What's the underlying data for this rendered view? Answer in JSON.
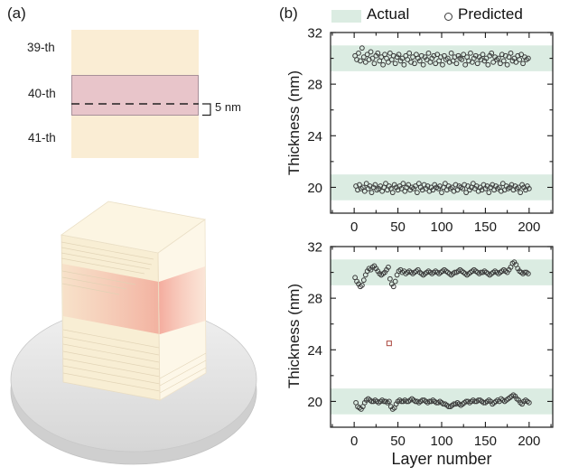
{
  "panel_a": {
    "label": "(a)",
    "layer_labels": [
      "39-th",
      "40-th",
      "41-th"
    ],
    "thickness_annotation": "5 nm",
    "colors": {
      "film": "#faedd4",
      "highlight": "#e8c5ca",
      "highlight_border": "#a89099",
      "disk": "#e7e7e7"
    }
  },
  "panel_b": {
    "label": "(b)",
    "legend": [
      {
        "label": "Actual",
        "swatch": "band"
      },
      {
        "label": "Predicted",
        "swatch": "circle-marker"
      }
    ],
    "ylabel": "Thickness (nm)",
    "xlabel": "Layer number",
    "colors": {
      "band": "#dbece2",
      "marker": "#3a3a3a",
      "outlier": "#b2574f",
      "axis": "#1a1a1a"
    }
  },
  "chart_data": [
    {
      "type": "scatter",
      "title": "",
      "xlabel": "",
      "ylabel": "Thickness (nm)",
      "xlim": [
        -27,
        227
      ],
      "ylim": [
        18,
        32
      ],
      "xticks": [
        0,
        50,
        100,
        150,
        200
      ],
      "yticks": [
        20,
        24,
        28,
        32
      ],
      "xticks_minor": [
        -25,
        25,
        75,
        125,
        175,
        225
      ],
      "yticks_minor": [
        22,
        26,
        30
      ],
      "grid": false,
      "bands": [
        {
          "name": "Actual 30 nm",
          "lo": 29,
          "hi": 31
        },
        {
          "name": "Actual 20 nm",
          "lo": 19,
          "hi": 21
        }
      ],
      "series": [
        {
          "name": "Predicted (odd layers, ~30 nm)",
          "marker": "circle",
          "x_start": 1,
          "x_step": 2,
          "y": [
            30.2,
            29.9,
            30.4,
            29.8,
            30.8,
            30.1,
            29.7,
            30.3,
            29.9,
            30.5,
            30.0,
            29.6,
            30.2,
            30.4,
            29.8,
            30.1,
            29.5,
            30.3,
            30.0,
            29.7,
            30.4,
            29.9,
            30.2,
            29.6,
            30.1,
            30.3,
            29.8,
            30.0,
            29.5,
            30.2,
            29.9,
            30.4,
            29.7,
            30.1,
            29.6,
            30.3,
            30.0,
            29.8,
            30.2,
            29.5,
            30.1,
            29.9,
            30.4,
            29.7,
            30.0,
            30.2,
            29.6,
            30.3,
            29.8,
            30.1,
            29.5,
            30.2,
            29.9,
            30.0,
            29.7,
            30.4,
            29.8,
            30.1,
            29.6,
            30.2,
            30.0,
            29.9,
            30.3,
            29.5,
            30.1,
            29.8,
            30.4,
            29.7,
            30.0,
            30.2,
            29.6,
            30.1,
            29.9,
            30.3,
            29.8,
            30.0,
            29.5,
            30.2,
            30.4,
            29.7,
            30.1,
            29.9,
            30.0,
            29.6,
            30.3,
            29.8,
            30.2,
            29.5,
            30.1,
            30.4,
            29.8,
            30.0,
            29.7,
            30.2,
            29.9,
            30.3,
            29.6,
            30.1,
            29.9,
            30.0
          ]
        },
        {
          "name": "Predicted (even layers, ~20 nm)",
          "marker": "circle",
          "x_start": 2,
          "x_step": 2,
          "y": [
            20.1,
            19.8,
            20.2,
            19.9,
            20.0,
            19.7,
            20.3,
            19.9,
            20.1,
            19.6,
            20.0,
            20.2,
            19.8,
            19.9,
            20.1,
            19.7,
            20.0,
            20.3,
            19.8,
            20.1,
            19.9,
            19.6,
            20.2,
            20.0,
            19.8,
            20.1,
            19.9,
            20.3,
            19.7,
            20.0,
            20.2,
            19.8,
            20.0,
            19.9,
            20.1,
            19.6,
            20.3,
            20.0,
            19.8,
            20.2,
            19.9,
            20.1,
            19.7,
            20.0,
            19.8,
            20.2,
            20.0,
            19.9,
            20.1,
            19.6,
            20.0,
            20.3,
            19.8,
            20.1,
            19.9,
            20.0,
            19.7,
            20.2,
            19.8,
            20.1,
            20.0,
            19.9,
            20.2,
            19.6,
            20.1,
            19.8,
            20.0,
            20.3,
            19.9,
            20.1,
            19.7,
            20.0,
            19.8,
            20.2,
            19.9,
            20.1,
            19.6,
            20.0,
            20.2,
            19.8,
            20.1,
            19.9,
            20.0,
            19.7,
            20.3,
            19.8,
            20.1,
            19.9,
            20.0,
            20.2,
            19.8,
            20.1,
            19.9,
            20.0,
            19.6,
            20.2,
            20.0,
            19.8,
            20.1,
            19.9
          ]
        }
      ],
      "outliers": []
    },
    {
      "type": "scatter",
      "title": "",
      "xlabel": "Layer number",
      "ylabel": "Thickness (nm)",
      "xlim": [
        -27,
        227
      ],
      "ylim": [
        18,
        32
      ],
      "xticks": [
        0,
        50,
        100,
        150,
        200
      ],
      "yticks": [
        20,
        24,
        28,
        32
      ],
      "xticks_minor": [
        -25,
        25,
        75,
        125,
        175,
        225
      ],
      "yticks_minor": [
        22,
        26,
        30
      ],
      "grid": false,
      "bands": [
        {
          "name": "Actual 30 nm",
          "lo": 29,
          "hi": 31
        },
        {
          "name": "Actual 20 nm",
          "lo": 19,
          "hi": 21
        }
      ],
      "series": [
        {
          "name": "Predicted (odd layers, ~30 nm)",
          "marker": "circle",
          "x_start": 1,
          "x_step": 2,
          "y": [
            29.6,
            29.3,
            29.1,
            28.9,
            29.0,
            29.4,
            29.8,
            30.1,
            30.3,
            30.2,
            30.4,
            30.5,
            30.3,
            30.1,
            29.9,
            29.8,
            29.9,
            30.0,
            30.2,
            30.4,
            29.5,
            29.1,
            28.9,
            29.3,
            29.8,
            30.1,
            30.2,
            30.0,
            30.1,
            29.9,
            30.0,
            30.1,
            30.0,
            29.9,
            30.0,
            30.1,
            30.2,
            30.0,
            29.9,
            29.8,
            29.9,
            30.0,
            30.1,
            30.0,
            29.9,
            30.0,
            30.1,
            30.0,
            29.9,
            30.0,
            30.1,
            30.2,
            30.1,
            30.0,
            29.9,
            29.8,
            29.9,
            30.0,
            30.0,
            30.1,
            30.2,
            30.1,
            30.0,
            29.9,
            29.8,
            29.9,
            30.0,
            30.1,
            30.2,
            30.1,
            30.0,
            29.9,
            30.0,
            30.0,
            30.1,
            30.0,
            29.9,
            29.8,
            29.9,
            30.0,
            30.1,
            30.0,
            29.9,
            30.0,
            30.1,
            30.2,
            30.1,
            30.0,
            30.2,
            30.4,
            30.7,
            30.8,
            30.6,
            30.3,
            30.1,
            30.0,
            29.9,
            30.0,
            30.0,
            29.9
          ]
        },
        {
          "name": "Predicted (even layers, ~20 nm)",
          "marker": "circle",
          "x_start": 2,
          "x_step": 2,
          "y": [
            19.9,
            19.6,
            19.5,
            19.4,
            19.6,
            19.9,
            20.1,
            20.2,
            20.1,
            20.0,
            20.0,
            20.1,
            20.0,
            19.9,
            20.0,
            20.1,
            20.0,
            20.0,
            19.9,
            20.0,
            19.6,
            19.4,
            19.5,
            19.8,
            20.0,
            20.1,
            20.0,
            20.0,
            20.1,
            20.0,
            20.0,
            20.1,
            20.2,
            20.1,
            20.0,
            20.0,
            19.9,
            20.0,
            20.1,
            20.1,
            20.0,
            19.9,
            20.0,
            20.0,
            20.1,
            20.0,
            19.9,
            19.9,
            20.0,
            19.9,
            19.8,
            19.8,
            19.7,
            19.6,
            19.6,
            19.7,
            19.8,
            19.8,
            19.9,
            19.8,
            19.7,
            19.8,
            19.9,
            20.0,
            20.0,
            19.9,
            20.0,
            20.1,
            20.0,
            20.0,
            20.1,
            20.1,
            20.0,
            19.9,
            19.9,
            20.0,
            20.1,
            20.0,
            19.8,
            19.9,
            20.0,
            20.1,
            20.0,
            20.2,
            20.1,
            20.0,
            20.1,
            20.2,
            20.3,
            20.4,
            20.5,
            20.4,
            20.2,
            20.1,
            19.9,
            19.8,
            20.0,
            20.1,
            20.0,
            19.9
          ]
        }
      ],
      "outliers": [
        {
          "x": 40,
          "y": 24.5,
          "marker": "square"
        }
      ]
    }
  ]
}
